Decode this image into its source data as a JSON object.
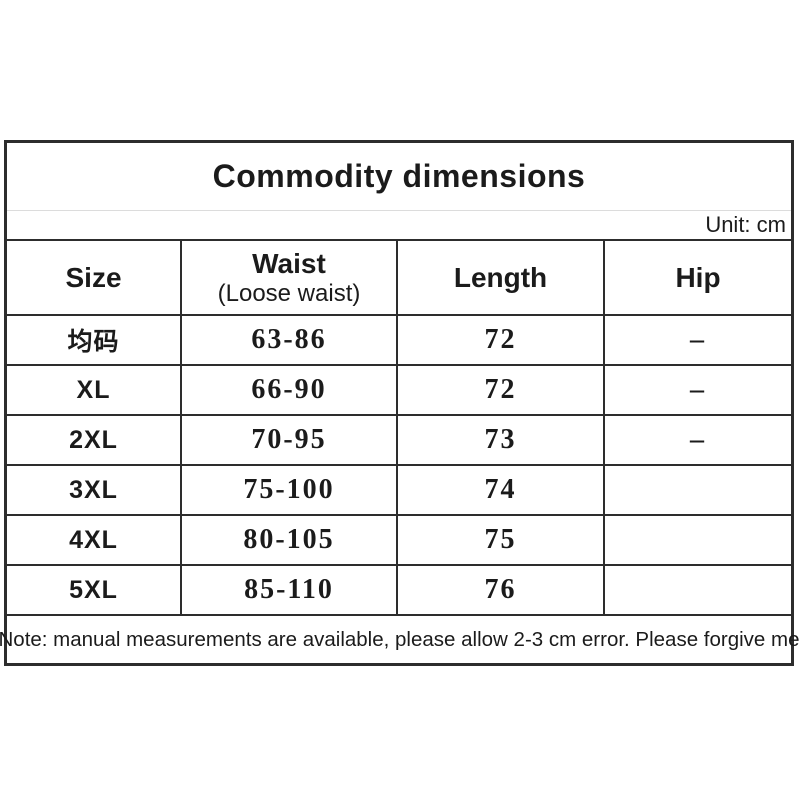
{
  "title": "Commodity dimensions",
  "unit_label": "Unit: cm",
  "table": {
    "columns": [
      {
        "label": "Size",
        "sublabel": ""
      },
      {
        "label": "Waist",
        "sublabel": "(Loose waist)"
      },
      {
        "label": "Length",
        "sublabel": ""
      },
      {
        "label": "Hip",
        "sublabel": ""
      }
    ],
    "rows": [
      {
        "size": "均码",
        "waist": "63-86",
        "length": "72",
        "hip": "–"
      },
      {
        "size": "XL",
        "waist": "66-90",
        "length": "72",
        "hip": "–"
      },
      {
        "size": "2XL",
        "waist": "70-95",
        "length": "73",
        "hip": "–"
      },
      {
        "size": "3XL",
        "waist": "75-100",
        "length": "74",
        "hip": ""
      },
      {
        "size": "4XL",
        "waist": "80-105",
        "length": "75",
        "hip": ""
      },
      {
        "size": "5XL",
        "waist": "85-110",
        "length": "76",
        "hip": ""
      }
    ]
  },
  "note": "Note: manual measurements are available, please allow 2-3 cm error. Please forgive me",
  "colors": {
    "background": "#ffffff",
    "border": "#2d2d2d",
    "text": "#1b1b1b",
    "light_divider": "#dcdcdc"
  }
}
